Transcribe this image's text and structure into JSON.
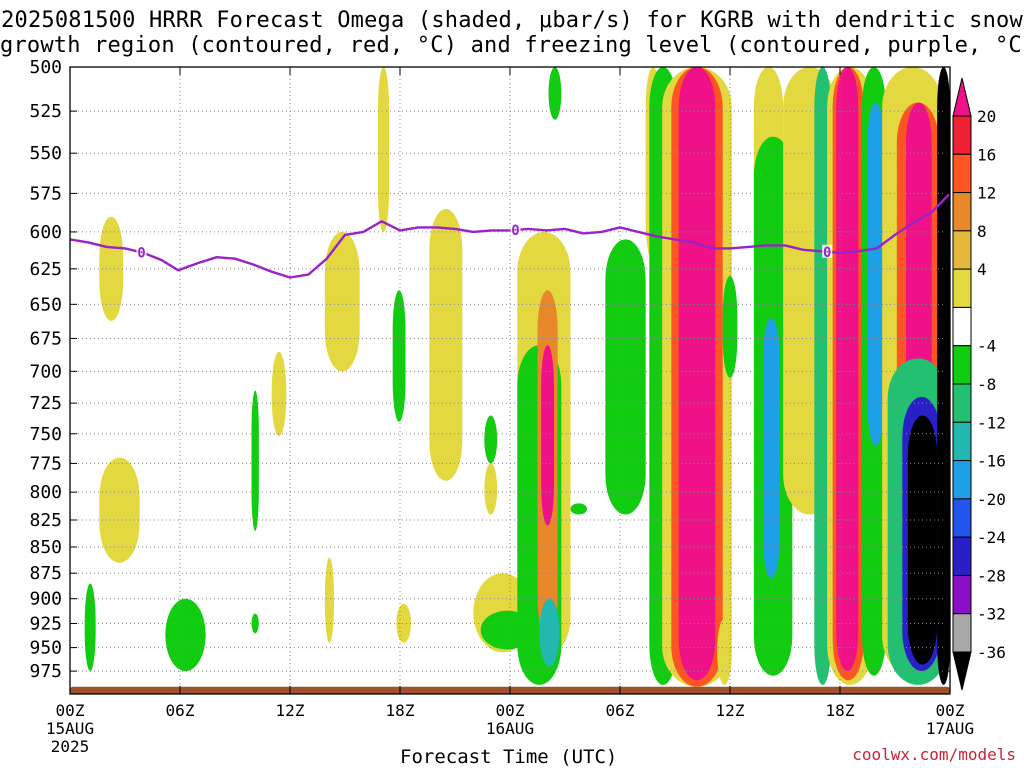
{
  "title": {
    "line1": "2025081500 HRRR Forecast Omega (shaded, μbar/s) for KGRB with dendritic snow",
    "line2": "growth region (contoured, red, °C) and freezing level (contoured, purple, °C)"
  },
  "x_axis_title": "Forecast Time (UTC)",
  "credit": "coolwx.com/models",
  "colors": {
    "freezing_level": "#9a22c8",
    "ground": "#a0522d",
    "grid": "#888888"
  },
  "chart_data": {
    "type": "heatmap",
    "title": "2025081500 HRRR Forecast Omega (shaded, μbar/s) for KGRB with dendritic snow growth region (contoured, red, °C) and freezing level (contoured, purple, °C)",
    "xlabel": "Forecast Time (UTC)",
    "ylabel": "",
    "x_unit": "forecast hour",
    "xlim": [
      0,
      48
    ],
    "ylim": [
      1000,
      500
    ],
    "y_scale": "log-pressure",
    "y_ticks": [
      500,
      525,
      550,
      575,
      600,
      625,
      650,
      675,
      700,
      725,
      750,
      775,
      800,
      825,
      850,
      875,
      900,
      925,
      950,
      975
    ],
    "x_ticks": [
      {
        "hour": 0,
        "label": "00Z",
        "sub1": "15AUG",
        "sub2": "2025"
      },
      {
        "hour": 6,
        "label": "06Z",
        "sub1": "",
        "sub2": ""
      },
      {
        "hour": 12,
        "label": "12Z",
        "sub1": "",
        "sub2": ""
      },
      {
        "hour": 18,
        "label": "18Z",
        "sub1": "",
        "sub2": ""
      },
      {
        "hour": 24,
        "label": "00Z",
        "sub1": "16AUG",
        "sub2": ""
      },
      {
        "hour": 30,
        "label": "06Z",
        "sub1": "",
        "sub2": ""
      },
      {
        "hour": 36,
        "label": "12Z",
        "sub1": "",
        "sub2": ""
      },
      {
        "hour": 42,
        "label": "18Z",
        "sub1": "",
        "sub2": ""
      },
      {
        "hour": 48,
        "label": "00Z",
        "sub1": "17AUG",
        "sub2": ""
      }
    ],
    "grid": true,
    "colorbar": {
      "labels": [
        "20",
        "16",
        "12",
        "8",
        "4",
        "-4",
        "-8",
        "-12",
        "-16",
        "-20",
        "-24",
        "-28",
        "-32",
        "-36"
      ],
      "bins": [
        {
          "lo": 20,
          "hi": null,
          "color": "#ee1188"
        },
        {
          "lo": 16,
          "hi": 20,
          "color": "#ee2233"
        },
        {
          "lo": 12,
          "hi": 16,
          "color": "#ff5522"
        },
        {
          "lo": 8,
          "hi": 12,
          "color": "#e8882a"
        },
        {
          "lo": 4,
          "hi": 8,
          "color": "#e3b83c"
        },
        {
          "lo": 0,
          "hi": 4,
          "color": "#e4d840"
        },
        {
          "lo": -4,
          "hi": 4,
          "color": "#ffffff"
        },
        {
          "lo": -8,
          "hi": -4,
          "color": "#11cc11"
        },
        {
          "lo": -12,
          "hi": -8,
          "color": "#22c070"
        },
        {
          "lo": -16,
          "hi": -12,
          "color": "#22b8b0"
        },
        {
          "lo": -20,
          "hi": -16,
          "color": "#1ea0e8"
        },
        {
          "lo": -24,
          "hi": -20,
          "color": "#2255ee"
        },
        {
          "lo": -28,
          "hi": -24,
          "color": "#2a20c8"
        },
        {
          "lo": -32,
          "hi": -28,
          "color": "#8a10c8"
        },
        {
          "lo": -36,
          "hi": -32,
          "color": "#a8a8a8"
        },
        {
          "lo": null,
          "hi": -36,
          "color": "#000000"
        }
      ]
    },
    "freezing_level": {
      "label": "0",
      "label_hours": [
        3.9,
        24.3,
        41.3
      ],
      "hours": [
        0,
        1,
        2,
        3,
        4,
        5,
        5.9,
        7,
        8,
        9,
        10,
        11,
        12,
        13,
        14,
        15,
        16,
        17,
        18,
        19,
        20,
        21,
        22,
        23,
        24,
        25,
        26,
        27,
        28,
        29,
        30,
        31,
        32,
        33,
        34,
        35,
        36,
        37,
        38,
        39,
        40,
        41,
        42,
        43,
        44,
        45,
        46,
        47,
        48
      ],
      "pressure": [
        605,
        607,
        610,
        611,
        614,
        619,
        626,
        621,
        617,
        618,
        622,
        627,
        631,
        629,
        618,
        602,
        600,
        593,
        599,
        597,
        597,
        598,
        600,
        599,
        599,
        598,
        599,
        598,
        601,
        600,
        597,
        600,
        603,
        605,
        607,
        611,
        611,
        610,
        609,
        609,
        612,
        613,
        614,
        613,
        611,
        602,
        594,
        587,
        575
      ]
    },
    "omega_regions": [
      {
        "hours": [
          0,
          48
        ],
        "p": [
          1000,
          992
        ],
        "value": "ground",
        "color": "#a0522d"
      },
      {
        "hours": [
          1.6,
          2.9
        ],
        "p": [
          590,
          662
        ],
        "value": 4
      },
      {
        "hours": [
          1.6,
          3.8
        ],
        "p": [
          770,
          865
        ],
        "value": 4
      },
      {
        "hours": [
          0.8,
          1.4
        ],
        "p": [
          885,
          975
        ],
        "value": -4
      },
      {
        "hours": [
          5.2,
          7.4
        ],
        "p": [
          900,
          975
        ],
        "value": -4
      },
      {
        "hours": [
          9.9,
          10.3
        ],
        "p": [
          915,
          935
        ],
        "value": -4
      },
      {
        "hours": [
          9.9,
          10.3
        ],
        "p": [
          715,
          835
        ],
        "value": -4
      },
      {
        "hours": [
          11,
          11.8
        ],
        "p": [
          685,
          752
        ],
        "value": 4
      },
      {
        "hours": [
          13.9,
          15.8
        ],
        "p": [
          600,
          700
        ],
        "value": 4
      },
      {
        "hours": [
          16.8,
          17.4
        ],
        "p": [
          500,
          600
        ],
        "value": 4
      },
      {
        "hours": [
          13.9,
          14.4
        ],
        "p": [
          860,
          945
        ],
        "value": 4
      },
      {
        "hours": [
          17.8,
          18.6
        ],
        "p": [
          905,
          945
        ],
        "value": 4
      },
      {
        "hours": [
          17.6,
          18.3
        ],
        "p": [
          640,
          740
        ],
        "value": -4
      },
      {
        "hours": [
          19.6,
          21.4
        ],
        "p": [
          585,
          790
        ],
        "value": 4
      },
      {
        "hours": [
          22,
          25.2
        ],
        "p": [
          875,
          955
        ],
        "value": 4
      },
      {
        "hours": [
          22.6,
          23.3
        ],
        "p": [
          735,
          775
        ],
        "value": -4
      },
      {
        "hours": [
          22.6,
          23.3
        ],
        "p": [
          775,
          820
        ],
        "value": 4
      },
      {
        "hours": [
          22.4,
          25.3
        ],
        "p": [
          912,
          952
        ],
        "value": -4
      },
      {
        "hours": [
          24.4,
          27.3
        ],
        "p": [
          600,
          960
        ],
        "value": 4
      },
      {
        "hours": [
          24.4,
          26.8
        ],
        "p": [
          680,
          990
        ],
        "value": -4
      },
      {
        "hours": [
          25.5,
          26.6
        ],
        "p": [
          640,
          940
        ],
        "value": 8
      },
      {
        "hours": [
          25.7,
          26.4
        ],
        "p": [
          680,
          830
        ],
        "value": 20
      },
      {
        "hours": [
          25.6,
          26.7
        ],
        "p": [
          900,
          970
        ],
        "value": -12
      },
      {
        "hours": [
          26.1,
          26.8
        ],
        "p": [
          500,
          530
        ],
        "value": -4
      },
      {
        "hours": [
          29.2,
          31.4
        ],
        "p": [
          605,
          820
        ],
        "value": -4
      },
      {
        "hours": [
          27.3,
          28.2
        ],
        "p": [
          810,
          820
        ],
        "value": -4
      },
      {
        "hours": [
          31.4,
          32.2
        ],
        "p": [
          500,
          620
        ],
        "value": 4
      },
      {
        "hours": [
          31.6,
          33.1
        ],
        "p": [
          500,
          990
        ],
        "value": -4
      },
      {
        "hours": [
          32.3,
          36.1
        ],
        "p": [
          500,
          992
        ],
        "value": 4
      },
      {
        "hours": [
          32.8,
          35.6
        ],
        "p": [
          500,
          992
        ],
        "value": 12
      },
      {
        "hours": [
          33.2,
          35.2
        ],
        "p": [
          500,
          985
        ],
        "value": 20
      },
      {
        "hours": [
          35.6,
          36.4
        ],
        "p": [
          630,
          705
        ],
        "value": -4
      },
      {
        "hours": [
          35.3,
          36.1
        ],
        "p": [
          920,
          990
        ],
        "value": 4
      },
      {
        "hours": [
          37.3,
          38.9
        ],
        "p": [
          500,
          620
        ],
        "value": 4
      },
      {
        "hours": [
          37.3,
          39.4
        ],
        "p": [
          540,
          980
        ],
        "value": -4
      },
      {
        "hours": [
          37.8,
          38.7
        ],
        "p": [
          660,
          880
        ],
        "value": -16
      },
      {
        "hours": [
          38.9,
          41.8
        ],
        "p": [
          500,
          820
        ],
        "value": 4
      },
      {
        "hours": [
          40.6,
          41.5
        ],
        "p": [
          500,
          990
        ],
        "value": -8
      },
      {
        "hours": [
          41.3,
          43.8
        ],
        "p": [
          500,
          990
        ],
        "value": 4
      },
      {
        "hours": [
          41.6,
          43.3
        ],
        "p": [
          500,
          985
        ],
        "value": 12
      },
      {
        "hours": [
          41.8,
          43.0
        ],
        "p": [
          500,
          975
        ],
        "value": 20
      },
      {
        "hours": [
          43.2,
          44.5
        ],
        "p": [
          500,
          980
        ],
        "value": -4
      },
      {
        "hours": [
          43.5,
          44.4
        ],
        "p": [
          520,
          760
        ],
        "value": -16
      },
      {
        "hours": [
          44.3,
          47.6
        ],
        "p": [
          500,
          980
        ],
        "value": 4
      },
      {
        "hours": [
          45.1,
          47.4
        ],
        "p": [
          520,
          960
        ],
        "value": 12
      },
      {
        "hours": [
          45.6,
          47.0
        ],
        "p": [
          520,
          880
        ],
        "value": 20
      },
      {
        "hours": [
          44.6,
          47.9
        ],
        "p": [
          690,
          990
        ],
        "value": -8
      },
      {
        "hours": [
          45.4,
          47.5
        ],
        "p": [
          720,
          975
        ],
        "value": -24
      },
      {
        "hours": [
          45.7,
          47.3
        ],
        "p": [
          735,
          968
        ],
        "value": -36
      },
      {
        "hours": [
          47.3,
          48
        ],
        "p": [
          500,
          990
        ],
        "value": -36
      }
    ]
  }
}
